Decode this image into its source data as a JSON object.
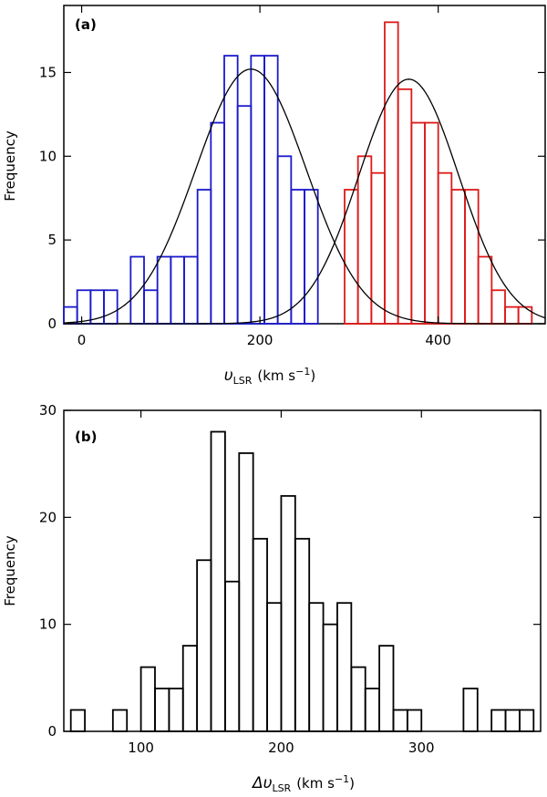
{
  "chart_data": [
    {
      "type": "bar",
      "panel_label": "(a)",
      "xlabel": {
        "main": "υ",
        "sub": "LSR",
        "unit_pre": "(km s",
        "unit_sup": "−1",
        "unit_post": ")"
      },
      "ylabel": "Frequency",
      "xlim": [
        -20,
        520
      ],
      "ylim": [
        0,
        19
      ],
      "xticks": [
        0,
        200,
        400
      ],
      "yticks": [
        0,
        5,
        10,
        15
      ],
      "bin_width": 15,
      "series": [
        {
          "name": "blue",
          "color": "#1a1acc",
          "bin_starts": [
            -20,
            -5,
            10,
            25,
            40,
            55,
            70,
            85,
            100,
            115,
            130,
            145,
            160,
            175,
            190,
            205,
            220,
            235,
            250
          ],
          "values": [
            1,
            2,
            2,
            2,
            0,
            4,
            2,
            4,
            4,
            4,
            8,
            12,
            16,
            13,
            16,
            16,
            10,
            8,
            8
          ]
        },
        {
          "name": "red",
          "color": "#dd1a1a",
          "bin_starts": [
            295,
            310,
            325,
            340,
            355,
            370,
            385,
            400,
            415,
            430,
            445,
            460,
            475,
            490
          ],
          "values": [
            8,
            10,
            9,
            18,
            14,
            12,
            12,
            9,
            8,
            8,
            4,
            2,
            1,
            1
          ]
        }
      ],
      "fits": [
        {
          "type": "gaussian",
          "amplitude": 15.2,
          "mean": 190,
          "sigma": 62
        },
        {
          "type": "gaussian",
          "amplitude": 14.6,
          "mean": 367,
          "sigma": 56
        }
      ]
    },
    {
      "type": "bar",
      "panel_label": "(b)",
      "xlabel": {
        "main": "Δυ",
        "sub": "LSR",
        "unit_pre": "(km s",
        "unit_sup": "−1",
        "unit_post": ")"
      },
      "ylabel": "Frequency",
      "xlim": [
        45,
        385
      ],
      "ylim": [
        0,
        30
      ],
      "xticks": [
        100,
        200,
        300
      ],
      "yticks": [
        0,
        10,
        20,
        30
      ],
      "bin_width": 10,
      "series": [
        {
          "name": "delta",
          "color": "#000000",
          "bin_starts": [
            50,
            60,
            70,
            80,
            90,
            100,
            110,
            120,
            130,
            140,
            150,
            160,
            170,
            180,
            190,
            200,
            210,
            220,
            230,
            240,
            250,
            260,
            270,
            280,
            290,
            300,
            310,
            320,
            330,
            340,
            350,
            360,
            370
          ],
          "values": [
            2,
            0,
            0,
            2,
            0,
            6,
            4,
            4,
            8,
            16,
            28,
            14,
            26,
            18,
            12,
            22,
            18,
            12,
            10,
            12,
            6,
            4,
            8,
            2,
            2,
            0,
            0,
            0,
            4,
            0,
            2,
            2,
            2
          ]
        }
      ]
    }
  ]
}
